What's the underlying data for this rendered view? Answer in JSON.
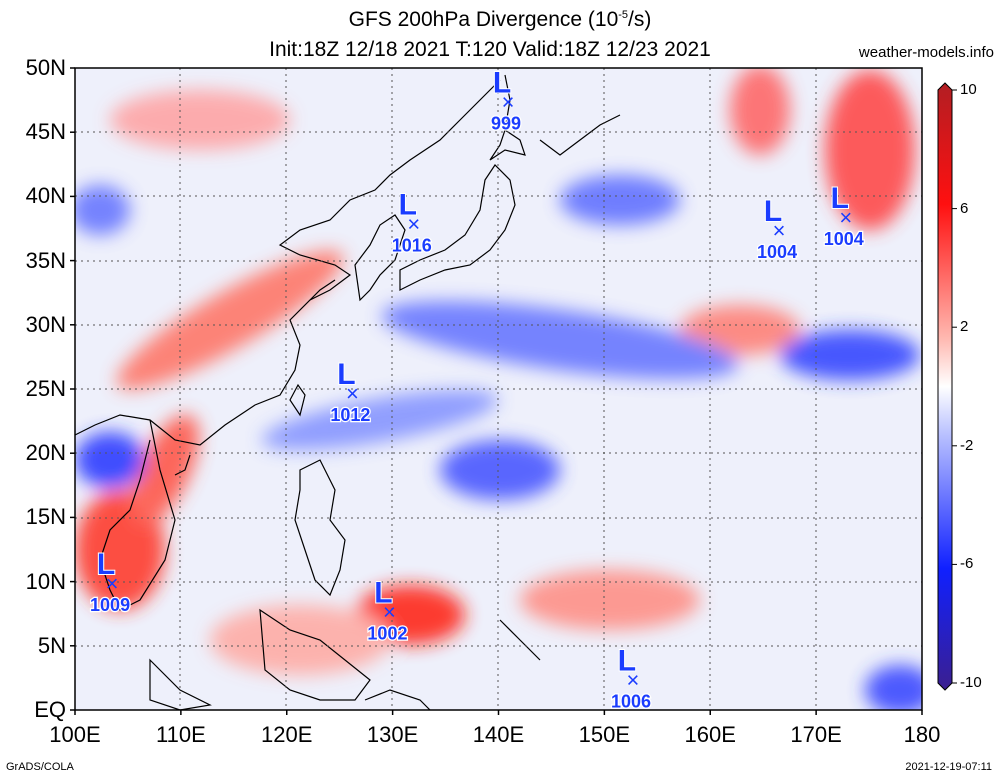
{
  "title": {
    "line1": "GFS 200hPa Divergence (10",
    "exp": "-5",
    "unit": "/s)",
    "line2": "Init:18Z 12/18 2021 T:120 Valid:18Z 12/23 2021"
  },
  "site": "weather-models.info",
  "footer": {
    "left": "GrADS/COLA",
    "right": "2021-12-19-07:11"
  },
  "lat_labels": [
    "50N",
    "45N",
    "40N",
    "35N",
    "30N",
    "25N",
    "20N",
    "15N",
    "10N",
    "5N",
    "EQ"
  ],
  "lat_values": [
    50,
    45,
    40,
    35,
    30,
    25,
    20,
    15,
    10,
    5,
    0
  ],
  "lon_labels": [
    "100E",
    "110E",
    "120E",
    "130E",
    "140E",
    "150E",
    "160E",
    "170E",
    "180"
  ],
  "lon_values": [
    100,
    110,
    120,
    130,
    140,
    150,
    160,
    170,
    180
  ],
  "colorbar": {
    "labels": [
      "10",
      "6",
      "2",
      "-2",
      "-6",
      "-10"
    ],
    "values": [
      10,
      6,
      2,
      -2,
      -6,
      -10
    ],
    "colors": {
      "max": "#b21e23",
      "pos": "#ff2a14",
      "neutral": "#ffffff",
      "neg": "#2a3cff",
      "min": "#3b1f8f"
    }
  },
  "lows": [
    {
      "pressure": "999",
      "lon": 140.9,
      "lat": 47.3
    },
    {
      "pressure": "1016",
      "lon": 132.0,
      "lat": 37.8
    },
    {
      "pressure": "1004",
      "lon": 166.5,
      "lat": 37.3
    },
    {
      "pressure": "1004",
      "lon": 172.8,
      "lat": 38.3
    },
    {
      "pressure": "1012",
      "lon": 126.2,
      "lat": 24.6
    },
    {
      "pressure": "1009",
      "lon": 103.5,
      "lat": 9.8
    },
    {
      "pressure": "1002",
      "lon": 129.7,
      "lat": 7.6
    },
    {
      "pressure": "1006",
      "lon": 152.7,
      "lat": 2.3
    }
  ],
  "low_symbol": "L",
  "low_marker": "×",
  "low_color": "#1a3cff"
}
